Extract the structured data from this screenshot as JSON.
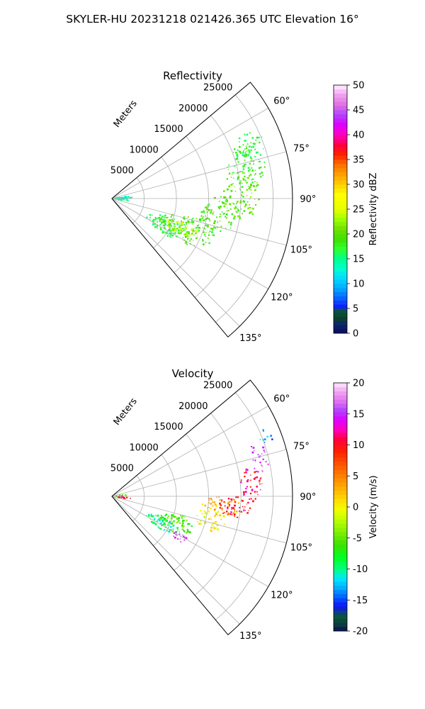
{
  "figure": {
    "title": "SKYLER-HU  20231218  021426.365 UTC Elevation 16°"
  },
  "chart_data": [
    {
      "type": "heatmap",
      "panel": "polar-sector",
      "title": "Reflectivity",
      "r_label": "Meters",
      "r_ticks": [
        5000,
        10000,
        15000,
        20000,
        25000
      ],
      "r_tick_labels": [
        "5000",
        "10000",
        "15000",
        "20000",
        "25000"
      ],
      "r_max": 28000,
      "theta_range_deg": [
        50,
        140
      ],
      "theta_ticks_deg": [
        60,
        75,
        90,
        105,
        120,
        135
      ],
      "theta_tick_labels": [
        "60°",
        "75°",
        "90°",
        "105°",
        "120°",
        "135°"
      ],
      "grid": true,
      "colorbar": {
        "label": "Reflectivity dBZ",
        "range": [
          0,
          50
        ],
        "ticks": [
          0,
          5,
          10,
          15,
          20,
          25,
          30,
          35,
          40,
          45,
          50
        ],
        "tick_labels": [
          "0",
          "5",
          "10",
          "15",
          "20",
          "25",
          "30",
          "35",
          "40",
          "45",
          "50"
        ],
        "colormap": "NWSRef"
      },
      "regions": [
        {
          "r": [
            300,
            3200
          ],
          "theta": [
            80,
            93
          ],
          "value": 13
        },
        {
          "r": [
            1000,
            3000
          ],
          "theta": [
            93,
            100
          ],
          "value": 15
        },
        {
          "r": [
            6000,
            13000
          ],
          "theta": [
            108,
            124
          ],
          "value": 16
        },
        {
          "r": [
            8000,
            17000
          ],
          "theta": [
            102,
            122
          ],
          "value": 19
        },
        {
          "r": [
            9000,
            14500
          ],
          "theta": [
            108,
            118
          ],
          "value": 23
        },
        {
          "r": [
            14000,
            19500
          ],
          "theta": [
            89,
            108
          ],
          "value": 19
        },
        {
          "r": [
            17000,
            23000
          ],
          "theta": [
            78,
            99
          ],
          "value": 20
        },
        {
          "r": [
            18500,
            24500
          ],
          "theta": [
            68,
            84
          ],
          "value": 18
        },
        {
          "r": [
            20000,
            25500
          ],
          "theta": [
            64,
            74
          ],
          "value": 17
        }
      ]
    },
    {
      "type": "heatmap",
      "panel": "polar-sector",
      "title": "Velocity",
      "r_label": "Meters",
      "r_ticks": [
        5000,
        10000,
        15000,
        20000,
        25000
      ],
      "r_tick_labels": [
        "5000",
        "10000",
        "15000",
        "20000",
        "25000"
      ],
      "r_max": 28000,
      "theta_range_deg": [
        50,
        140
      ],
      "theta_ticks_deg": [
        60,
        75,
        90,
        105,
        120,
        135
      ],
      "theta_tick_labels": [
        "60°",
        "75°",
        "90°",
        "105°",
        "120°",
        "135°"
      ],
      "grid": true,
      "colorbar": {
        "label": "Velocity (m/s)",
        "range": [
          -20,
          20
        ],
        "ticks": [
          -20,
          -15,
          -10,
          -5,
          0,
          5,
          10,
          15,
          20
        ],
        "tick_labels": [
          "-20",
          "-15",
          "-10",
          "-5",
          "0",
          "5",
          "10",
          "15",
          "20"
        ],
        "colormap": "NWSVel"
      },
      "regions": [
        {
          "r": [
            300,
            2600
          ],
          "theta": [
            82,
            92
          ],
          "value": -5
        },
        {
          "r": [
            600,
            3000
          ],
          "theta": [
            92,
            100
          ],
          "value": 12
        },
        {
          "r": [
            6000,
            11500
          ],
          "theta": [
            112,
            124
          ],
          "value": -10
        },
        {
          "r": [
            8000,
            13500
          ],
          "theta": [
            105,
            120
          ],
          "value": -6
        },
        {
          "r": [
            11000,
            14000
          ],
          "theta": [
            118,
            124
          ],
          "value": 16
        },
        {
          "r": [
            13500,
            18000
          ],
          "theta": [
            96,
            110
          ],
          "value": 0
        },
        {
          "r": [
            14000,
            20000
          ],
          "theta": [
            90,
            100
          ],
          "value": 3
        },
        {
          "r": [
            16500,
            21500
          ],
          "theta": [
            90,
            100
          ],
          "value": 10
        },
        {
          "r": [
            20000,
            23500
          ],
          "theta": [
            78,
            92
          ],
          "value": 11
        },
        {
          "r": [
            22000,
            25000
          ],
          "theta": [
            70,
            81
          ],
          "value": 15
        },
        {
          "r": [
            24500,
            26500
          ],
          "theta": [
            66,
            72
          ],
          "value": -13
        }
      ]
    }
  ]
}
